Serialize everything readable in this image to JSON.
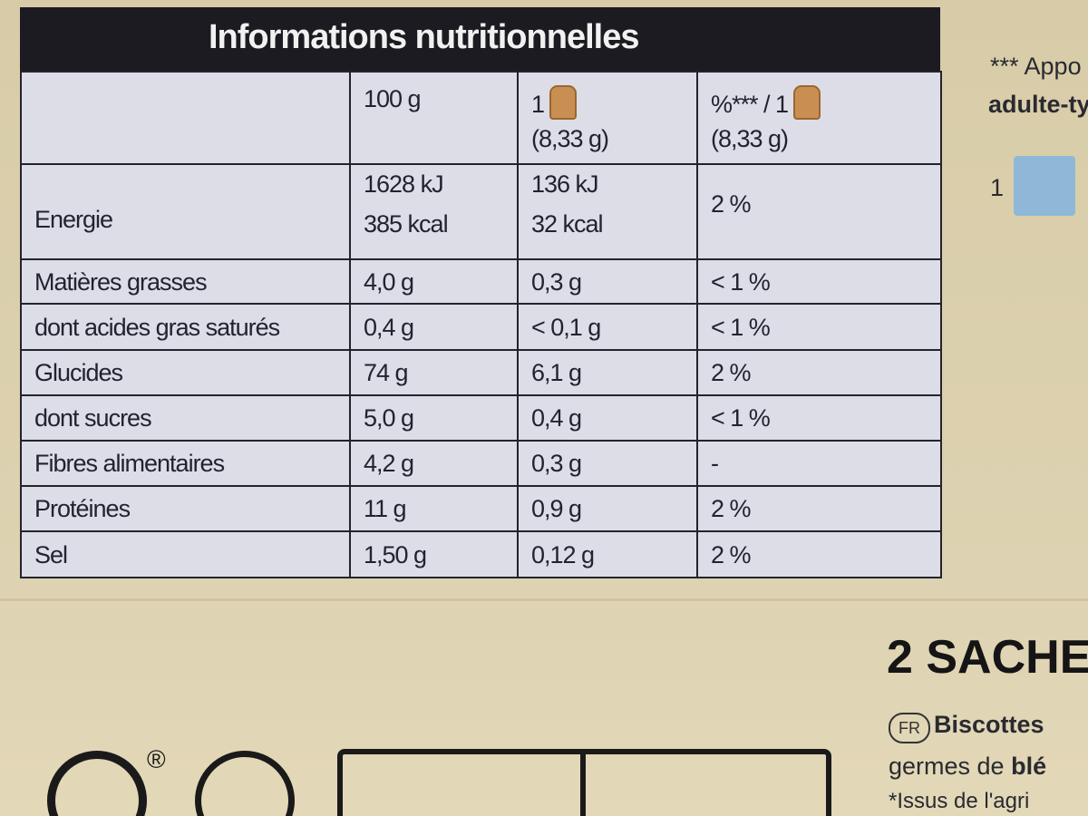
{
  "table": {
    "title": "Informations nutritionnelles",
    "header": [
      [
        ""
      ],
      [
        "100 g"
      ],
      [
        "1",
        "(8,33 g)"
      ],
      [
        "%*** / 1",
        "(8,33 g)"
      ]
    ],
    "rows": [
      [
        [
          "Energie"
        ],
        [
          "1628 kJ",
          "385 kcal"
        ],
        [
          "136 kJ",
          "32 kcal"
        ],
        [
          "2 %"
        ]
      ],
      [
        [
          "Matières grasses"
        ],
        [
          "4,0 g"
        ],
        [
          "0,3 g"
        ],
        [
          "< 1 %"
        ]
      ],
      [
        [
          "dont acides gras saturés"
        ],
        [
          "0,4 g"
        ],
        [
          "< 0,1 g"
        ],
        [
          "< 1 %"
        ]
      ],
      [
        [
          "Glucides"
        ],
        [
          "74 g"
        ],
        [
          "6,1 g"
        ],
        [
          "2 %"
        ]
      ],
      [
        [
          "dont sucres"
        ],
        [
          "5,0 g"
        ],
        [
          "0,4 g"
        ],
        [
          "< 1 %"
        ]
      ],
      [
        [
          "Fibres alimentaires"
        ],
        [
          "4,2 g"
        ],
        [
          "0,3 g"
        ],
        [
          "-"
        ]
      ],
      [
        [
          "Protéines"
        ],
        [
          "11 g"
        ],
        [
          "0,9 g"
        ],
        [
          "2 %"
        ]
      ],
      [
        [
          "Sel"
        ],
        [
          "1,50 g"
        ],
        [
          "0,12 g"
        ],
        [
          "2 %"
        ]
      ]
    ]
  },
  "side": {
    "note_lines": [
      "*** Appo",
      "adulte-ty"
    ],
    "count": "1",
    "sachets": "2 SACHE",
    "lang": "FR",
    "product": "Biscottes",
    "desc_start": "germes de ",
    "desc_bold": "blé",
    "origin": "*Issus de l'agri",
    "registered": "®"
  }
}
